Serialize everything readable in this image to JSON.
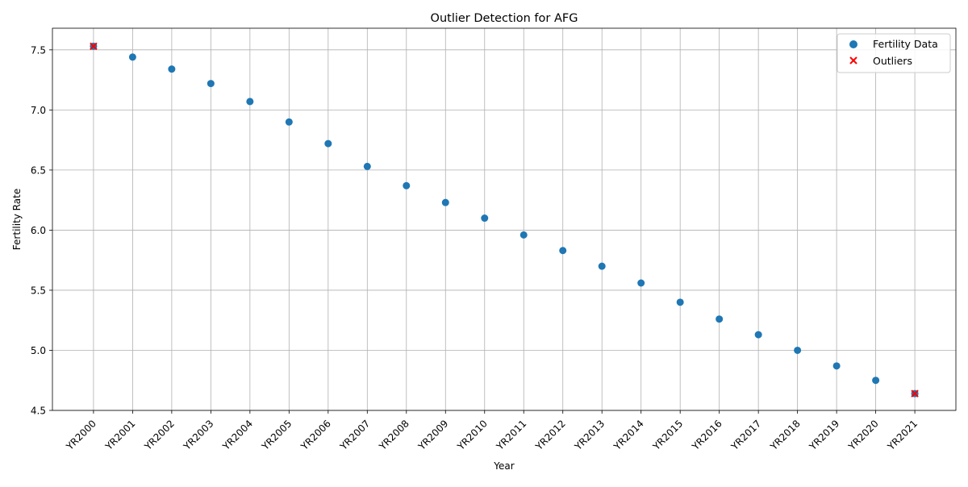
{
  "chart_data": {
    "type": "scatter",
    "title": "Outlier Detection for AFG",
    "xlabel": "Year",
    "ylabel": "Fertility Rate",
    "categories": [
      "YR2000",
      "YR2001",
      "YR2002",
      "YR2003",
      "YR2004",
      "YR2005",
      "YR2006",
      "YR2007",
      "YR2008",
      "YR2009",
      "YR2010",
      "YR2011",
      "YR2012",
      "YR2013",
      "YR2014",
      "YR2015",
      "YR2016",
      "YR2017",
      "YR2018",
      "YR2019",
      "YR2020",
      "YR2021"
    ],
    "ylim": [
      4.5,
      7.68
    ],
    "yticks": [
      4.5,
      5.0,
      5.5,
      6.0,
      6.5,
      7.0,
      7.5
    ],
    "grid": true,
    "legend_position": "top-right",
    "series": [
      {
        "name": "Fertility Data",
        "marker": "circle",
        "color": "#1f77b4",
        "values": [
          7.53,
          7.44,
          7.34,
          7.22,
          7.07,
          6.9,
          6.72,
          6.53,
          6.37,
          6.23,
          6.1,
          5.96,
          5.83,
          5.7,
          5.56,
          5.4,
          5.26,
          5.13,
          5.0,
          4.87,
          4.75,
          4.64
        ]
      },
      {
        "name": "Outliers",
        "marker": "x",
        "color": "#ff0000",
        "points": [
          {
            "x": "YR2000",
            "y": 7.53
          },
          {
            "x": "YR2021",
            "y": 4.64
          }
        ]
      }
    ]
  }
}
